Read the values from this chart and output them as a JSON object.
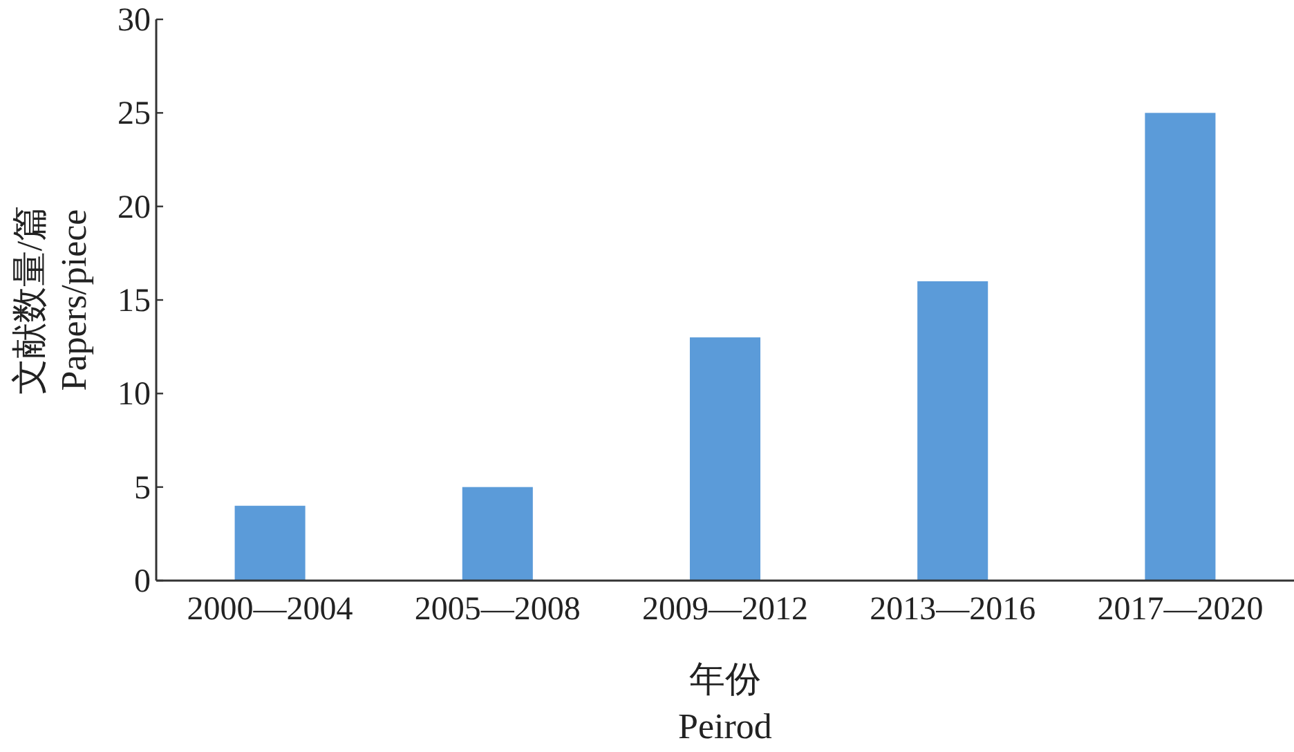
{
  "chart_data": {
    "type": "bar",
    "xlabel": "年份\nPeirod",
    "ylabel": "文献数量/篇\nPapers/piece",
    "categories": [
      "2000—2004",
      "2005—2008",
      "2009—2012",
      "2013—2016",
      "2017—2020"
    ],
    "values": [
      4,
      5,
      13,
      16,
      25
    ],
    "color": "#5b9bd9",
    "ylim": [
      0,
      30
    ],
    "yticks": [
      0,
      5,
      10,
      15,
      20,
      25,
      30
    ]
  }
}
